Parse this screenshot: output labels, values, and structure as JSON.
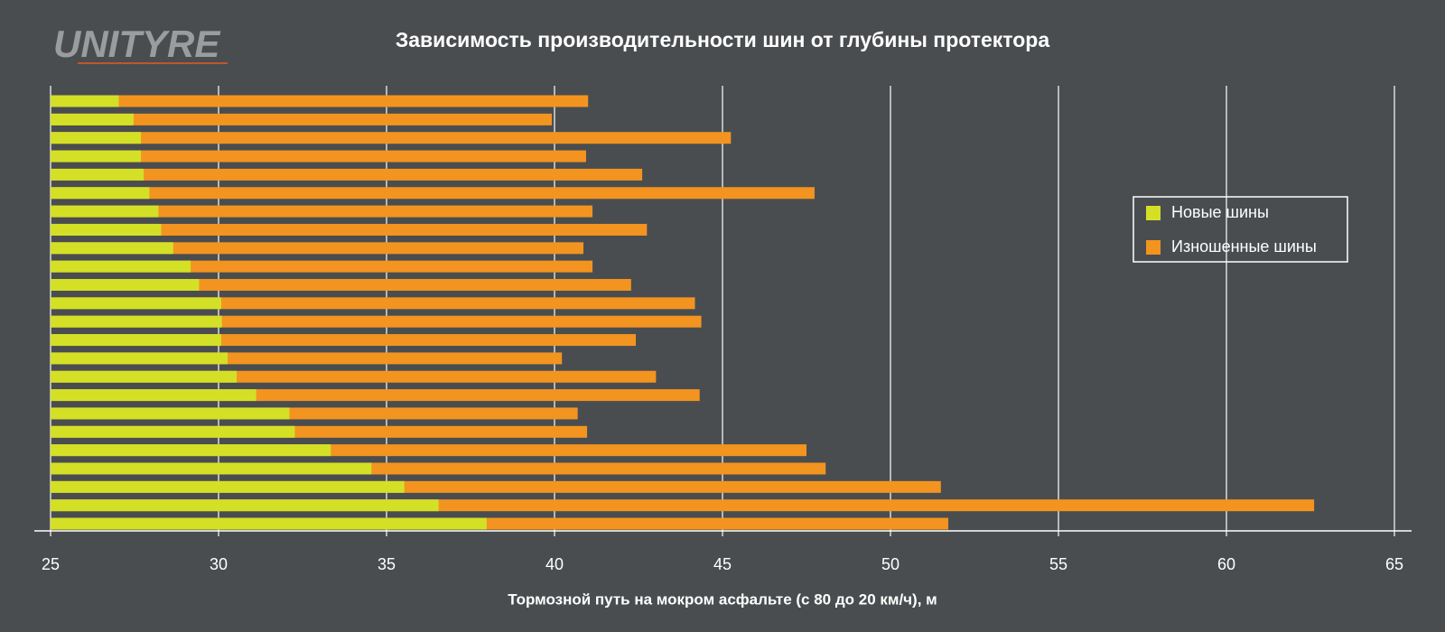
{
  "logo": "UNITYRE",
  "chart_data": {
    "type": "bar",
    "orientation": "horizontal",
    "overlap": true,
    "title": "Зависимость производительности шин от глубины протектора",
    "x_label": "Тормозной путь на мокром асфальте (с 80 до 20 км/ч), м",
    "xlim": [
      25,
      65
    ],
    "xticks": [
      25,
      30,
      35,
      40,
      45,
      50,
      55,
      60,
      65
    ],
    "grid": true,
    "legend": "right",
    "series": [
      {
        "name": "Изношенные шины",
        "color": "#f39420",
        "values": [
          41.0,
          39.92,
          45.25,
          40.94,
          42.61,
          47.74,
          41.13,
          42.75,
          40.86,
          41.13,
          42.28,
          44.18,
          44.37,
          42.42,
          40.22,
          43.02,
          44.32,
          40.69,
          40.97,
          47.5,
          48.07,
          51.5,
          62.61,
          51.72
        ]
      },
      {
        "name": "Новые шины",
        "color": "#d4e026",
        "values": [
          27.03,
          27.47,
          27.69,
          27.69,
          27.77,
          27.94,
          28.21,
          28.29,
          28.65,
          29.17,
          29.42,
          30.08,
          30.1,
          30.08,
          30.27,
          30.54,
          31.12,
          32.11,
          32.27,
          33.34,
          34.55,
          35.53,
          36.55,
          37.98
        ]
      }
    ]
  }
}
